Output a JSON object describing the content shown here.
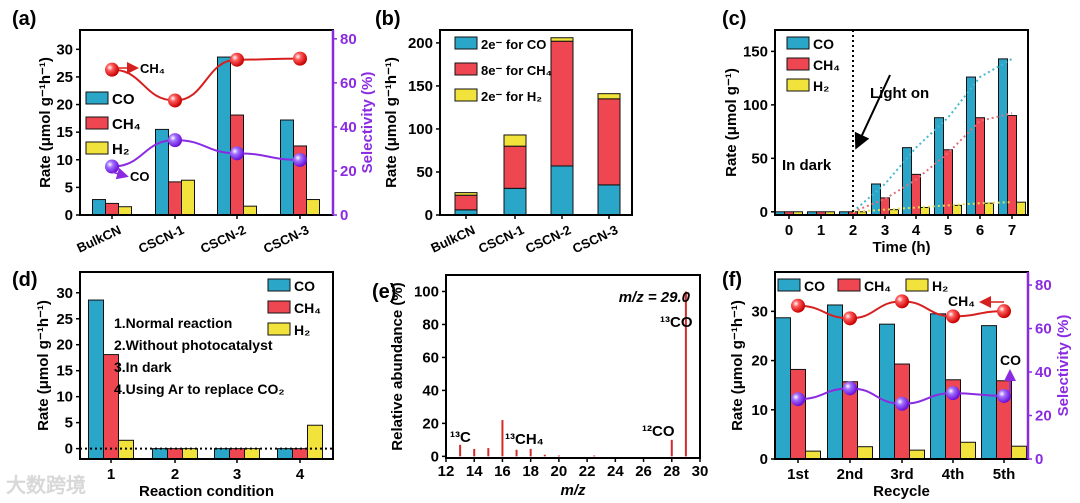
{
  "colors": {
    "CO": "#2aa6c9",
    "CH4": "#ef4752",
    "H2": "#f2e33c",
    "purple": "#8a2be2",
    "red_line": "#d6201f",
    "stem": "#d42a2a"
  },
  "watermark": "大数跨境",
  "chart_data": [
    {
      "panel": "(a)",
      "type": "bar",
      "categories": [
        "BulkCN",
        "CSCN-1",
        "CSCN-2",
        "CSCN-3"
      ],
      "ylabel": "Rate (μmol g⁻¹h⁻¹)",
      "y2label": "Selectivity (%)",
      "ylim": [
        0,
        33.5
      ],
      "y2lim": [
        0,
        84
      ],
      "yticks": [
        "0",
        "5",
        "10",
        "15",
        "20",
        "25",
        "30"
      ],
      "y2ticks": [
        "0",
        "20",
        "40",
        "60",
        "80"
      ],
      "series": [
        {
          "name": "CO",
          "values": [
            2.8,
            15.5,
            28.6,
            17.2
          ]
        },
        {
          "name": "CH₄",
          "values": [
            2.1,
            6.0,
            18.1,
            12.5
          ]
        },
        {
          "name": "H₂",
          "values": [
            1.5,
            6.3,
            1.6,
            2.8
          ]
        }
      ],
      "lines": [
        {
          "name": "CH₄",
          "axis": "right",
          "values": [
            66,
            52,
            70.5,
            71
          ]
        },
        {
          "name": "CO",
          "axis": "right",
          "values": [
            22,
            34,
            28,
            25
          ]
        }
      ],
      "legend": [
        "CO",
        "CH₄",
        "H₂"
      ],
      "annotations": [
        "CH₄",
        "CO"
      ]
    },
    {
      "panel": "(b)",
      "type": "bar-stacked",
      "categories": [
        "BulkCN",
        "CSCN-1",
        "CSCN-2",
        "CSCN-3"
      ],
      "ylabel": "Rate (μmol g⁻¹h⁻¹)",
      "ylim": [
        0,
        215
      ],
      "yticks": [
        "0",
        "50",
        "100",
        "150",
        "200"
      ],
      "series": [
        {
          "name": "2e⁻ for CO",
          "values": [
            6,
            31,
            57,
            35
          ]
        },
        {
          "name": "8e⁻ for CH₄",
          "values": [
            17,
            49,
            145,
            100
          ]
        },
        {
          "name": "2e⁻ for H₂",
          "values": [
            3,
            13,
            4,
            6
          ]
        }
      ],
      "legend": [
        "2e⁻ for CO",
        "8e⁻ for CH₄",
        "2e⁻ for H₂"
      ]
    },
    {
      "panel": "(c)",
      "type": "bar",
      "categories": [
        "0",
        "1",
        "2",
        "3",
        "4",
        "5",
        "6",
        "7"
      ],
      "xlabel": "Time (h)",
      "ylabel": "Rate (μmol g⁻¹)",
      "ylim": [
        -3,
        170
      ],
      "yticks": [
        "0",
        "50",
        "100",
        "150"
      ],
      "series": [
        {
          "name": "CO",
          "values": [
            0,
            0,
            0,
            26,
            60,
            88,
            126,
            143
          ]
        },
        {
          "name": "CH₄",
          "values": [
            0,
            0,
            0,
            13,
            35,
            58,
            88,
            90
          ]
        },
        {
          "name": "H₂",
          "values": [
            0,
            0,
            0,
            2,
            4,
            6,
            8,
            9
          ]
        }
      ],
      "legend": [
        "CO",
        "CH₄",
        "H₂"
      ],
      "annotations": [
        "Light on",
        "In dark"
      ]
    },
    {
      "panel": "(d)",
      "type": "bar",
      "categories": [
        "1",
        "2",
        "3",
        "4"
      ],
      "xlabel": "Reaction condition",
      "ylabel": "Rate (μmol g⁻¹h⁻¹)",
      "ylim": [
        -2,
        34
      ],
      "yticks": [
        "0",
        "5",
        "10",
        "15",
        "20",
        "25",
        "30"
      ],
      "series": [
        {
          "name": "CO",
          "values": [
            28.6,
            0,
            0,
            0
          ]
        },
        {
          "name": "CH₄",
          "values": [
            18.1,
            0,
            0,
            0
          ]
        },
        {
          "name": "H₂",
          "values": [
            1.6,
            0,
            0,
            4.5
          ]
        }
      ],
      "legend": [
        "CO",
        "CH₄",
        "H₂"
      ],
      "annotations": [
        "1.Normal reaction",
        "2.Without photocatalyst",
        "3.In dark",
        "4.Using Ar to replace CO₂"
      ]
    },
    {
      "panel": "(e)",
      "type": "stem",
      "xlabel": "m/z",
      "ylabel": "Relative abundance (%)",
      "xlim": [
        12,
        30
      ],
      "ylim": [
        -1,
        110
      ],
      "xticks": [
        "12",
        "14",
        "16",
        "18",
        "20",
        "22",
        "24",
        "26",
        "28",
        "30"
      ],
      "yticks": [
        "0",
        "20",
        "40",
        "60",
        "80",
        "100"
      ],
      "x": [
        13,
        14,
        15,
        16,
        17,
        18,
        19,
        20,
        22.5,
        28,
        29
      ],
      "values": [
        7,
        4.5,
        5,
        22,
        4,
        4.5,
        1,
        0.5,
        0.5,
        10,
        100
      ],
      "annotations": [
        "m/z = 29.0",
        "¹³CO",
        "¹³C",
        "¹³CH₄",
        "¹²CO"
      ]
    },
    {
      "panel": "(f)",
      "type": "bar",
      "categories": [
        "1st",
        "2nd",
        "3rd",
        "4th",
        "5th"
      ],
      "xlabel": "Recycle",
      "ylabel": "Rate (μmol g⁻¹h⁻¹)",
      "y2label": "Selectivity (%)",
      "ylim": [
        0,
        38
      ],
      "y2lim": [
        0,
        86
      ],
      "yticks": [
        "0",
        "10",
        "20",
        "30"
      ],
      "y2ticks": [
        "0",
        "20",
        "40",
        "60",
        "80"
      ],
      "series": [
        {
          "name": "CO",
          "values": [
            28.7,
            31.3,
            27.4,
            29.5,
            27.1
          ]
        },
        {
          "name": "CH₄",
          "values": [
            18.2,
            15.7,
            19.3,
            16.1,
            15.9
          ]
        },
        {
          "name": "H₂",
          "values": [
            1.6,
            2.5,
            1.8,
            3.4,
            2.6
          ]
        }
      ],
      "lines": [
        {
          "name": "CH₄",
          "axis": "right",
          "values": [
            70.5,
            64.7,
            72.5,
            65.6,
            68.0
          ]
        },
        {
          "name": "CO",
          "axis": "right",
          "values": [
            27.5,
            32.5,
            25.4,
            30.3,
            29.0
          ]
        }
      ],
      "legend": [
        "CO",
        "CH₄",
        "H₂"
      ],
      "annotations": [
        "CH₄",
        "CO"
      ]
    }
  ]
}
